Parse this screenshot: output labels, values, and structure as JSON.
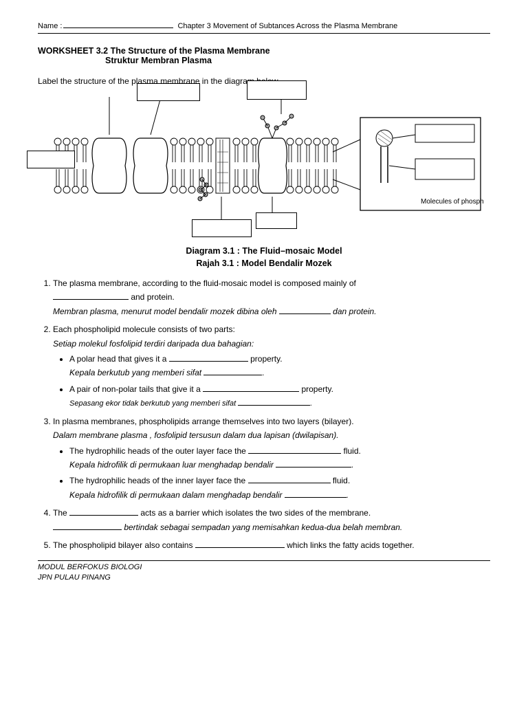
{
  "header": {
    "name_label": "Name :",
    "chapter": "Chapter  3 Movement of Subtances Across the Plasma Membrane"
  },
  "worksheet": {
    "title": "WORKSHEET 3.2 The Structure of the Plasma Membrane",
    "subtitle": "Struktur Membran Plasma",
    "instruction": "Label the structure of the plasma membrane in the diagram below."
  },
  "diagram": {
    "caption_en": "Diagram 3.1 :  The Fluid–mosaic Model",
    "caption_ms": "Rajah 3.1 : Model Bendalir Mozek",
    "inset_caption": "Molecules of phospholipid"
  },
  "q1": {
    "en_a": "The plasma membrane, according to the fluid-mosaic model is composed mainly of",
    "en_b": " and protein.",
    "ms_a": "Membran plasma, menurut model bendalir mozek dibina oleh ",
    "ms_b": " dan protein."
  },
  "q2": {
    "en": "Each phospholipid molecule consists of two parts:",
    "ms": "Setiap molekul fosfolipid terdiri daripada dua bahagian:",
    "b1_en_a": "A polar head that gives it a ",
    "b1_en_b": " property.",
    "b1_ms_a": "Kepala berkutub yang memberi sifat ",
    "b1_ms_b": ".",
    "b2_en_a": "A pair of non-polar tails that give it a ",
    "b2_en_b": " property.",
    "b2_ms_a": "Sepasang ekor tidak berkutub yang memberi sifat ",
    "b2_ms_b": "."
  },
  "q3": {
    "en": "In plasma membranes, phospholipids arrange themselves into two layers (bilayer).",
    "ms": "Dalam membrane plasma , fosfolipid tersusun dalam dua lapisan (dwilapisan).",
    "b1_en_a": "The hydrophilic heads of the outer layer face the ",
    "b1_en_b": " fluid.",
    "b1_ms_a": "Kepala hidrofilik di permukaan luar menghadap bendalir ",
    "b1_ms_b": ".",
    "b2_en_a": "The hydrophilic heads of the inner layer face the ",
    "b2_en_b": " fluid.",
    "b2_ms_a": "Kepala hidrofilik di permukaan dalam menghadap bendalir ",
    "b2_ms_b": "."
  },
  "q4": {
    "en_a": "The ",
    "en_b": " acts as a barrier which isolates the two sides of the membrane.",
    "ms_b": " bertindak sebagai sempadan yang memisahkan kedua-dua belah membran."
  },
  "q5": {
    "en_a": "The phospholipid bilayer also contains ",
    "en_b": " which links the fatty acids together."
  },
  "footer": {
    "line1": "MODUL BERFOKUS BIOLOGI",
    "line2": "JPN PULAU PINANG"
  }
}
